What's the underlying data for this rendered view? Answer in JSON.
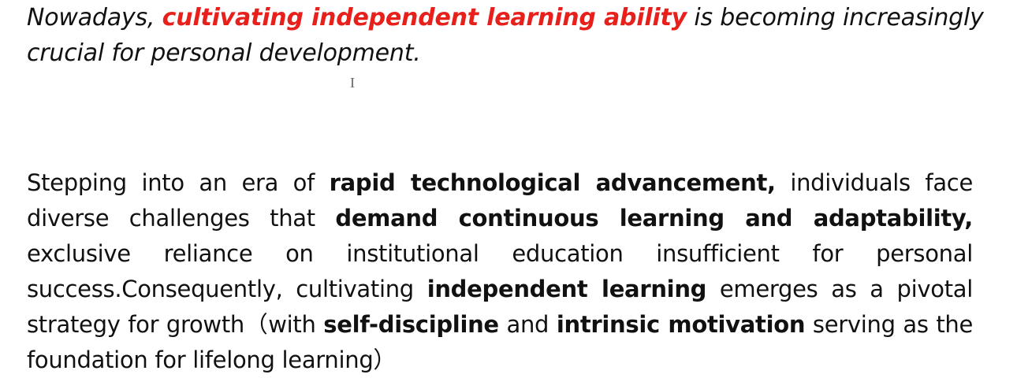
{
  "heading": {
    "lead": "Nowadays, ",
    "highlight": "cultivating independent learning ability",
    "tail": " is becoming increasingly crucial for personal development."
  },
  "cursor_glyph": "I",
  "paragraph": {
    "p1": "Stepping into an era of ",
    "b1": "rapid technological advancement,",
    "p2": " individuals face diverse challenges that ",
    "b2": "demand continuous learning and adaptability,",
    "p3": " exclusive reliance on institutional education insufficient for personal success.Consequently, cultivating ",
    "b3": "independent learning",
    "p4": " emerges as a pivotal strategy for growth（with ",
    "b4": "self-discipline",
    "p5": " and ",
    "b5": "intrinsic motivation",
    "p6": " serving as the foundation for lifelong learning）"
  }
}
